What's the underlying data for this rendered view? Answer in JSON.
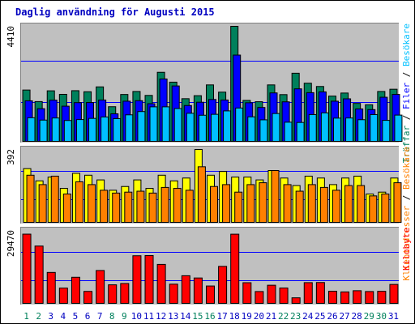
{
  "chart_data": {
    "type": "bar",
    "title": "Daglig användning för Augusti 2015",
    "x": [
      "1",
      "2",
      "3",
      "4",
      "5",
      "6",
      "7",
      "8",
      "9",
      "10",
      "11",
      "12",
      "13",
      "14",
      "15",
      "16",
      "17",
      "18",
      "19",
      "20",
      "21",
      "22",
      "23",
      "24",
      "25",
      "26",
      "27",
      "28",
      "29",
      "30",
      "31"
    ],
    "weekend_days": [
      "1",
      "2",
      "8",
      "9",
      "15",
      "16",
      "22",
      "23",
      "29",
      "30"
    ],
    "panels": [
      {
        "id": "top",
        "ymax_label": "4410",
        "ylim": [
          0,
          4410
        ],
        "legend": [
          "Träffar",
          "/",
          "Filer",
          "/",
          "Besökare"
        ],
        "series": [
          {
            "name": "Träffar",
            "color": "#00805c",
            "values": [
              1985,
              1545,
              1955,
              1820,
              1960,
              1920,
              2105,
              1350,
              1815,
              1930,
              1780,
              2660,
              2285,
              1655,
              1770,
              2180,
              1905,
              4410,
              1590,
              1540,
              2180,
              1810,
              2625,
              2245,
              2120,
              1755,
              1870,
              1475,
              1425,
              1930,
              2015
            ]
          },
          {
            "name": "Filer",
            "color": "#0000ff",
            "values": [
              1575,
              1275,
              1600,
              1370,
              1505,
              1510,
              1605,
              1080,
              1560,
              1580,
              1465,
              2405,
              2140,
              1395,
              1520,
              1625,
              1605,
              3315,
              1500,
              1320,
              1875,
              1535,
              2030,
              1885,
              1915,
              1560,
              1650,
              1265,
              1240,
              1710,
              1820
            ]
          },
          {
            "name": "Besökare",
            "color": "#00c0ff",
            "values": [
              930,
              840,
              920,
              825,
              860,
              905,
              960,
              895,
              1040,
              1165,
              1345,
              1345,
              1280,
              1100,
              1025,
              1060,
              1190,
              1300,
              965,
              850,
              1090,
              760,
              750,
              1050,
              1115,
              915,
              920,
              855,
              1050,
              830,
              1030
            ]
          }
        ]
      },
      {
        "id": "middle",
        "ymax_label": "392",
        "ylim": [
          0,
          392
        ],
        "legend": [
          "Klientadresser",
          "/",
          "Besökare"
        ],
        "series": [
          {
            "name": "Klientadresser",
            "color": "#ffff00",
            "values": [
              290,
              225,
              245,
              185,
              265,
              255,
              230,
              175,
              195,
              230,
              185,
              255,
              225,
              240,
              392,
              255,
              275,
              245,
              245,
              230,
              280,
              240,
              200,
              250,
              240,
              205,
              240,
              250,
              155,
              165,
              240
            ]
          },
          {
            "name": "Besökare",
            "color": "#ff8000",
            "values": [
              255,
              205,
              250,
              155,
              220,
              205,
              175,
              160,
              165,
              170,
              160,
              190,
              185,
              175,
              300,
              195,
              205,
              165,
              205,
              215,
              280,
              205,
              170,
              205,
              190,
              175,
              200,
              200,
              145,
              155,
              215
            ]
          }
        ]
      },
      {
        "id": "bottom",
        "ymax_label": "29470",
        "ylim": [
          0,
          29470
        ],
        "legend": [
          "Kilobyte"
        ],
        "series": [
          {
            "name": "Kilobyte",
            "color": "#ff0000",
            "values": [
              28000,
              23230,
              12685,
              6420,
              10755,
              5105,
              13460,
              7735,
              8260,
              19355,
              19440,
              15900,
              7990,
              11375,
              10470,
              7260,
              15110,
              27980,
              8580,
              5050,
              7570,
              6450,
              2540,
              8610,
              8660,
              5180,
              4900,
              5380,
              5050,
              5140,
              7890
            ]
          }
        ]
      }
    ],
    "colors": {
      "background": "#ffffff",
      "plot_background": "#c0c0c0",
      "frame": "#000000",
      "grid": "#0000ff",
      "title": "#0000c0",
      "weekday_label": "#0000c0",
      "weekend_label": "#00805c",
      "ymax_label": "#000000"
    }
  }
}
